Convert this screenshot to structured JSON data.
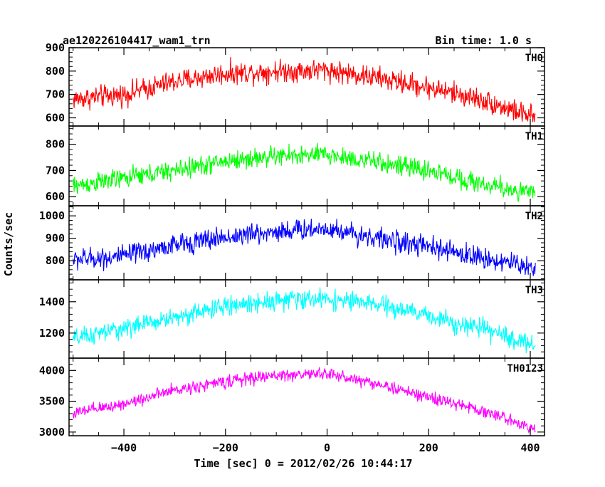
{
  "header": {
    "title": "ae120226104417_wam1_trn",
    "bin_time": "Bin time: 1.0 s"
  },
  "chart_data": {
    "type": "line",
    "ylabel": "Counts/sec",
    "xlabel": "Time [sec] 0 = 2012/02/26 10:44:17",
    "xlim": [
      -508,
      428
    ],
    "x_ticks": [
      -400,
      -200,
      0,
      200,
      400
    ],
    "x_tick_labels": [
      "−400",
      "−200",
      "0",
      "200",
      "400"
    ],
    "x_range_data": [
      -500,
      410
    ],
    "panels": [
      {
        "name": "TH0",
        "color": "#ff0000",
        "ylim": [
          565,
          900
        ],
        "y_ticks": [
          600,
          700,
          800,
          900
        ],
        "y_tick_labels": [
          "600",
          "700",
          "800",
          "900"
        ],
        "trend": [
          [
            -500,
            680
          ],
          [
            -400,
            700
          ],
          [
            -300,
            755
          ],
          [
            -200,
            790
          ],
          [
            -100,
            800
          ],
          [
            0,
            805
          ],
          [
            100,
            770
          ],
          [
            200,
            730
          ],
          [
            300,
            680
          ],
          [
            410,
            600
          ]
        ],
        "noise": 35
      },
      {
        "name": "TH1",
        "color": "#00ff00",
        "ylim": [
          565,
          870
        ],
        "y_ticks": [
          600,
          700,
          800
        ],
        "y_tick_labels": [
          "600",
          "700",
          "800"
        ],
        "trend": [
          [
            -500,
            640
          ],
          [
            -400,
            670
          ],
          [
            -300,
            700
          ],
          [
            -200,
            735
          ],
          [
            -100,
            755
          ],
          [
            0,
            760
          ],
          [
            100,
            730
          ],
          [
            200,
            700
          ],
          [
            300,
            650
          ],
          [
            410,
            610
          ]
        ],
        "noise": 28
      },
      {
        "name": "TH2",
        "color": "#0000ff",
        "ylim": [
          715,
          1045
        ],
        "y_ticks": [
          800,
          900,
          1000
        ],
        "y_tick_labels": [
          "800",
          "900",
          "1000"
        ],
        "trend": [
          [
            -500,
            805
          ],
          [
            -400,
            820
          ],
          [
            -300,
            870
          ],
          [
            -200,
            905
          ],
          [
            -100,
            930
          ],
          [
            0,
            945
          ],
          [
            100,
            900
          ],
          [
            200,
            860
          ],
          [
            300,
            815
          ],
          [
            410,
            770
          ]
        ],
        "noise": 35
      },
      {
        "name": "TH3",
        "color": "#00ffff",
        "ylim": [
          1040,
          1540
        ],
        "y_ticks": [
          1200,
          1400
        ],
        "y_tick_labels": [
          "1200",
          "1400"
        ],
        "trend": [
          [
            -500,
            1160
          ],
          [
            -400,
            1230
          ],
          [
            -300,
            1300
          ],
          [
            -200,
            1370
          ],
          [
            -100,
            1410
          ],
          [
            0,
            1420
          ],
          [
            100,
            1380
          ],
          [
            200,
            1310
          ],
          [
            300,
            1230
          ],
          [
            410,
            1120
          ]
        ],
        "noise": 45
      },
      {
        "name": "TH0123",
        "color": "#ff00ff",
        "ylim": [
          2940,
          4200
        ],
        "y_ticks": [
          3000,
          3500,
          4000
        ],
        "y_tick_labels": [
          "3000",
          "3500",
          "4000"
        ],
        "trend": [
          [
            -500,
            3300
          ],
          [
            -400,
            3460
          ],
          [
            -300,
            3680
          ],
          [
            -200,
            3820
          ],
          [
            -100,
            3920
          ],
          [
            0,
            3950
          ],
          [
            100,
            3780
          ],
          [
            200,
            3560
          ],
          [
            300,
            3360
          ],
          [
            410,
            3060
          ]
        ],
        "noise": 75
      }
    ]
  }
}
